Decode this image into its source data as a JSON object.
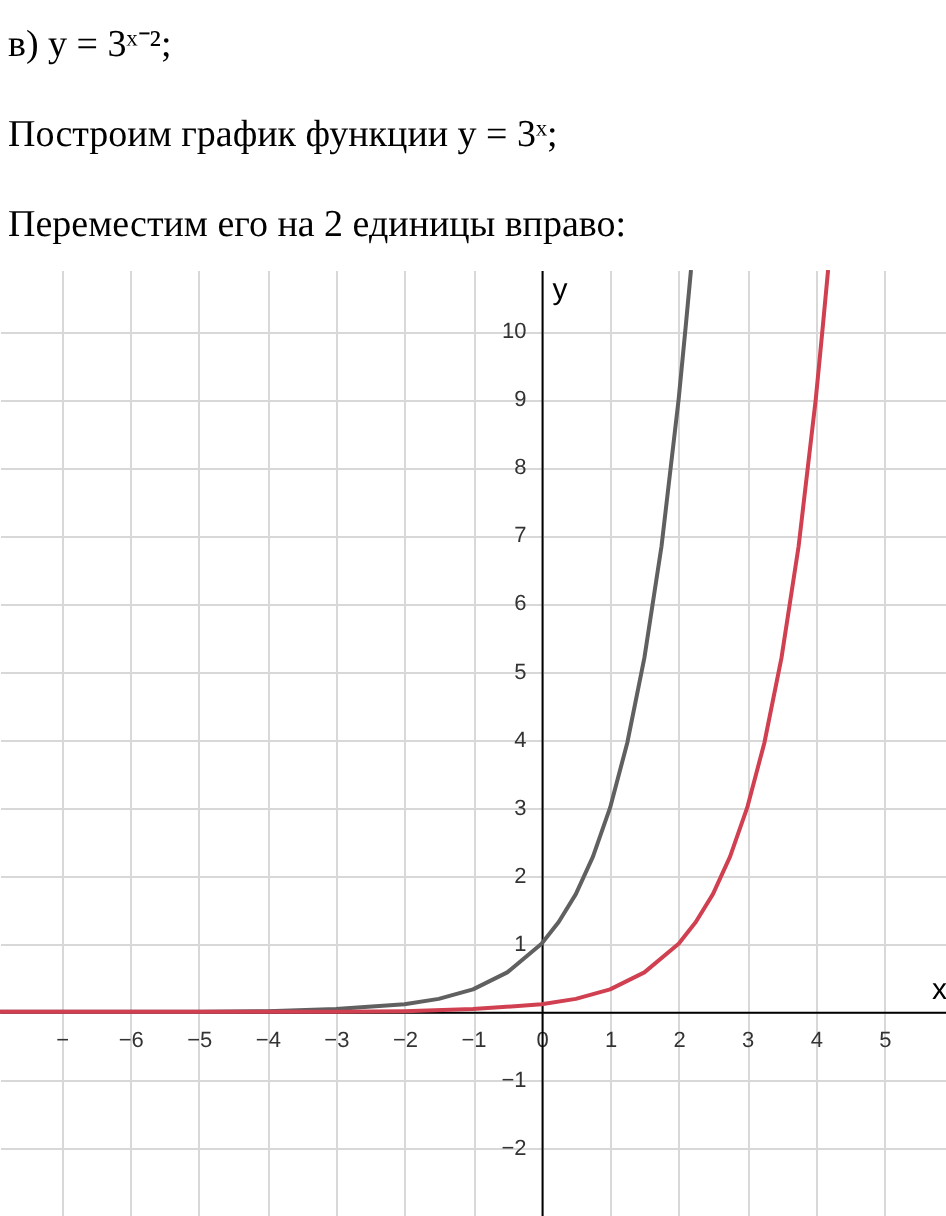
{
  "chart_data": {
    "type": "line",
    "title": "в) y = 3ˣ⁻²;",
    "subtitle": "Построим график функции y = 3ˣ;",
    "annotations": [
      "Переместим его на 2 единицы вправо:"
    ],
    "xlabel": "x",
    "ylabel": "y",
    "series": [
      {
        "color": "#606060",
        "x": [
          -7.9,
          -7,
          -6,
          -5,
          -4,
          -3,
          -2,
          -1.5,
          -1,
          -0.5,
          0,
          0.25,
          0.5,
          0.75,
          1,
          1.25,
          1.5,
          1.75,
          2,
          2.1,
          2.18
        ],
        "values": [
          0,
          0,
          0,
          0,
          0.01,
          0.04,
          0.11,
          0.19,
          0.33,
          0.58,
          1,
          1.32,
          1.73,
          2.28,
          3,
          3.95,
          5.2,
          6.84,
          9,
          10.04,
          10.9
        ]
      },
      {
        "color": "#d04050",
        "x": [
          -7.9,
          -6,
          -5,
          -4,
          -3,
          -2,
          -1,
          0,
          0.5,
          1,
          1.5,
          2,
          2.25,
          2.5,
          2.75,
          3,
          3.25,
          3.5,
          3.75,
          4,
          4.1,
          4.18
        ],
        "values": [
          0,
          0,
          0,
          0,
          0,
          0.01,
          0.04,
          0.11,
          0.19,
          0.33,
          0.58,
          1,
          1.32,
          1.73,
          2.28,
          3,
          3.95,
          5.2,
          6.84,
          9,
          10.04,
          10.9
        ]
      }
    ],
    "xlim": [
      -7.9,
      5.9
    ],
    "ylim": [
      -3,
      10.9
    ],
    "xticks": [
      {
        "value": -7,
        "label": "−"
      },
      -6,
      -5,
      -4,
      -3,
      -2,
      -1,
      0,
      1,
      2,
      3,
      4,
      5
    ],
    "yticks": [
      -2,
      -1,
      {
        "value": 0,
        "label": null
      },
      1,
      2,
      3,
      4,
      5,
      6,
      7,
      8,
      9,
      10
    ],
    "grid": true,
    "marker": "none",
    "line_style": "solid"
  }
}
